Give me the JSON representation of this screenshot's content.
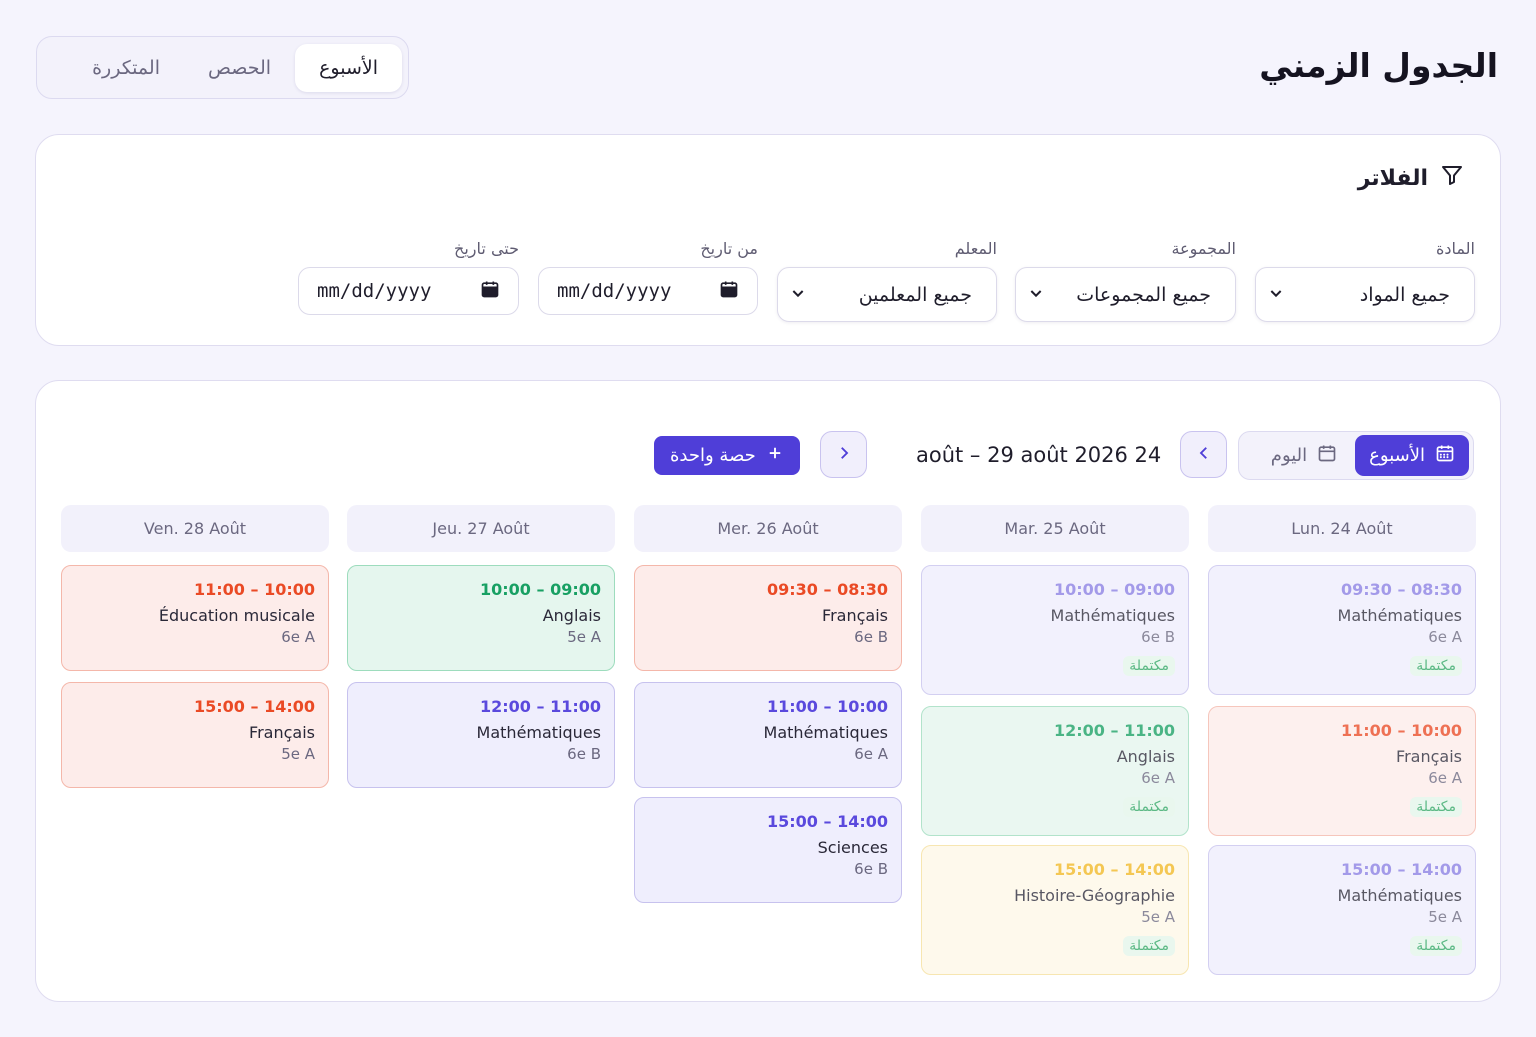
{
  "header": {
    "title": "الجدول الزمني",
    "tabs": [
      {
        "label": "الأسبوع",
        "active": true
      },
      {
        "label": "الحصص",
        "active": false
      },
      {
        "label": "المتكررة",
        "active": false
      }
    ]
  },
  "filters": {
    "title": "الفلاتر",
    "subject": {
      "label": "المادة",
      "value": "جميع المواد"
    },
    "group": {
      "label": "المجموعة",
      "value": "جميع المجموعات"
    },
    "teacher": {
      "label": "المعلم",
      "value": "جميع المعلمين"
    },
    "from_date": {
      "label": "من تاريخ",
      "value": "mm/dd/yyyy"
    },
    "to_date": {
      "label": "حتى تاريخ",
      "value": "mm/dd/yyyy"
    }
  },
  "calendar": {
    "view_week": "الأسبوع",
    "view_day": "اليوم",
    "range": "août – 29 août 2026 24",
    "add_session": "حصة واحدة",
    "days": [
      {
        "header": "Lun. 24 Août",
        "events": [
          {
            "time": "09:30 – 08:30",
            "subject": "Mathématiques",
            "group": "6e A",
            "color": "purple",
            "status": "مكتملة"
          },
          {
            "time": "11:00 – 10:00",
            "subject": "Français",
            "group": "6e A",
            "color": "red",
            "status": "مكتملة"
          },
          {
            "time": "15:00 – 14:00",
            "subject": "Mathématiques",
            "group": "5e A",
            "color": "purple",
            "status": "مكتملة"
          }
        ]
      },
      {
        "header": "Mar. 25 Août",
        "events": [
          {
            "time": "10:00 – 09:00",
            "subject": "Mathématiques",
            "group": "6e B",
            "color": "purple",
            "status": "مكتملة"
          },
          {
            "time": "12:00 – 11:00",
            "subject": "Anglais",
            "group": "6e A",
            "color": "green",
            "status": "مكتملة"
          },
          {
            "time": "15:00 – 14:00",
            "subject": "Histoire-Géographie",
            "group": "5e A",
            "color": "yellow",
            "status": "مكتملة"
          }
        ]
      },
      {
        "header": "Mer. 26 Août",
        "events": [
          {
            "time": "09:30 – 08:30",
            "subject": "Français",
            "group": "6e B",
            "color": "red",
            "status": ""
          },
          {
            "time": "11:00 – 10:00",
            "subject": "Mathématiques",
            "group": "6e A",
            "color": "purple",
            "status": ""
          },
          {
            "time": "15:00 – 14:00",
            "subject": "Sciences",
            "group": "6e B",
            "color": "purple",
            "status": ""
          }
        ]
      },
      {
        "header": "Jeu. 27 Août",
        "events": [
          {
            "time": "10:00 – 09:00",
            "subject": "Anglais",
            "group": "5e A",
            "color": "green",
            "status": ""
          },
          {
            "time": "12:00 – 11:00",
            "subject": "Mathématiques",
            "group": "6e B",
            "color": "purple",
            "status": ""
          }
        ]
      },
      {
        "header": "Ven. 28 Août",
        "events": [
          {
            "time": "11:00 – 10:00",
            "subject": "Éducation musicale",
            "group": "6e A",
            "color": "red",
            "status": ""
          },
          {
            "time": "15:00 – 14:00",
            "subject": "Français",
            "group": "5e A",
            "color": "red",
            "status": ""
          }
        ]
      }
    ]
  }
}
